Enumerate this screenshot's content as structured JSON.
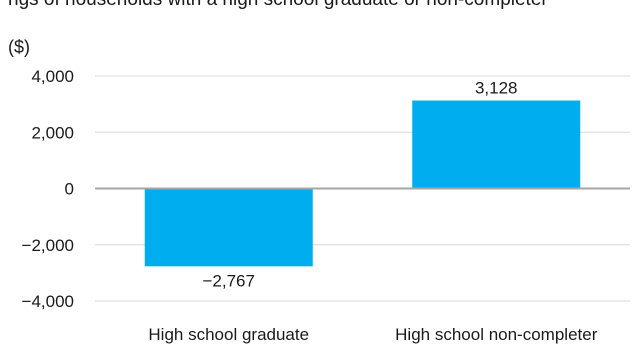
{
  "header": {
    "clipped_title": "ngs of households with a high school graduate or non-completer"
  },
  "chart_data": {
    "type": "bar",
    "unit_label": "($)",
    "categories": [
      "High school graduate",
      "High school non-completer"
    ],
    "values": [
      -2767,
      3128
    ],
    "value_labels": [
      "−2,767",
      "3,128"
    ],
    "ylim": [
      -4000,
      4000
    ],
    "yticks": [
      4000,
      2000,
      0,
      -2000,
      -4000
    ],
    "ytick_labels": [
      "4,000",
      "2,000",
      "0",
      "−2,000",
      "−4,000"
    ],
    "grid": true,
    "legend": "none",
    "colors": {
      "bar": "#00aeef",
      "grid": "#d9d9d9",
      "zero_line": "#a6a6a6",
      "text": "#1a1a1a"
    }
  }
}
